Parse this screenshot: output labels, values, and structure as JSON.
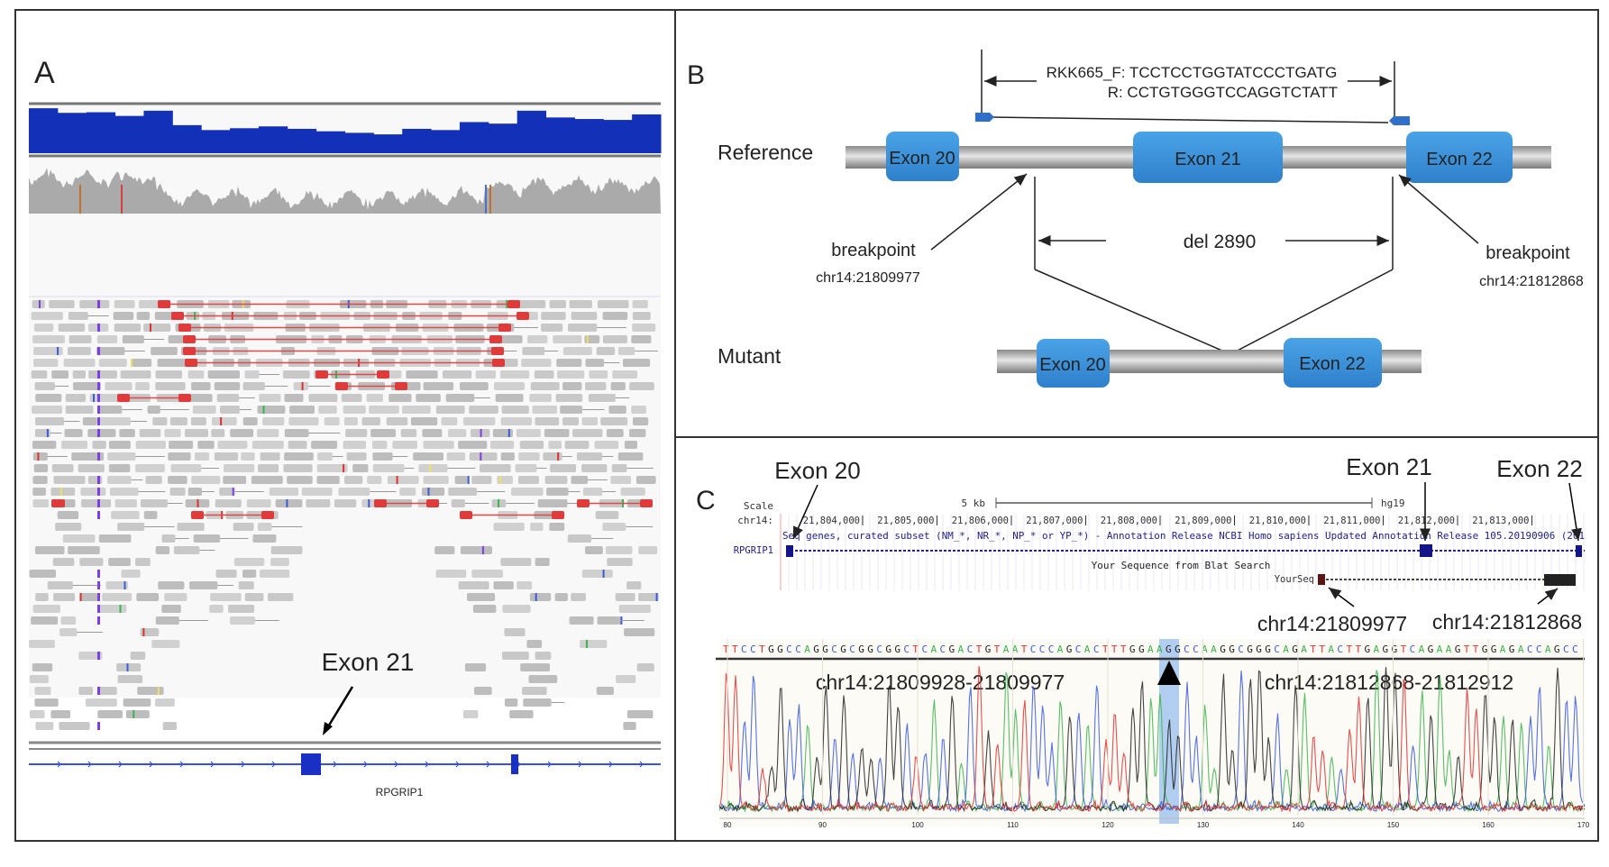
{
  "panel_a": {
    "label": "A",
    "exon_label": "Exon 21",
    "gene_name": "RPGRIP1"
  },
  "panel_b": {
    "label": "B",
    "reference_label": "Reference",
    "mutant_label": "Mutant",
    "primer_forward": "RKK665_F: TCCTCCTGGTATCCCTGATG",
    "primer_reverse": "R: CCTGTGGGTCCAGGTCTATT",
    "exons_reference": [
      "Exon 20",
      "Exon 21",
      "Exon 22"
    ],
    "exons_mutant": [
      "Exon 20",
      "Exon 22"
    ],
    "deletion_label": "del 2890",
    "breakpoint_left": {
      "label": "breakpoint",
      "position": "chr14:21809977"
    },
    "breakpoint_right": {
      "label": "breakpoint",
      "position": "chr14:21812868"
    },
    "exon_color": "#3a8fd6"
  },
  "panel_c": {
    "label": "C",
    "exon_labels": [
      "Exon 20",
      "Exon 21",
      "Exon 22"
    ],
    "browser": {
      "scale_label": "Scale",
      "scale_value": "5 kb",
      "assembly": "hg19",
      "chrom_label": "chr14:",
      "ticks": [
        "21,804,000",
        "21,805,000",
        "21,806,000",
        "21,807,000",
        "21,808,000",
        "21,809,000",
        "21,810,000",
        "21,811,000",
        "21,812,000",
        "21,813,000"
      ],
      "track_description": "Seq genes, curated subset (NM_*, NR_*, NP_* or YP_*) - Annotation Release NCBI Homo sapiens Updated Annotation Release 105.20190906 (201",
      "gene_name": "RPGRIP1",
      "blat_title": "Your Sequence from Blat Search",
      "blat_track": "YourSeq"
    },
    "breakpoint_left": "chr14:21809977",
    "breakpoint_right": "chr14:21812868",
    "sequence": "TTCCTGGCCAGGCGCGGCGGCTCACGACTGTAATCCCAGCACTTTGGAAGGCCAAGGCGGGCAGATTACTTGAGGTCAGAAGTTGGAGACCAGCC",
    "segment_left": "chr14:21809928-21809977",
    "segment_right": "chr14:21812868-21812912",
    "trace_ticks": [
      "80",
      "90",
      "100",
      "110",
      "120",
      "130",
      "140",
      "150",
      "160",
      "170"
    ],
    "base_colors": {
      "A": "#3cb44b",
      "C": "#3b5bdb",
      "G": "#222222",
      "T": "#e03131"
    },
    "highlight_color": "#9ec3f0"
  }
}
